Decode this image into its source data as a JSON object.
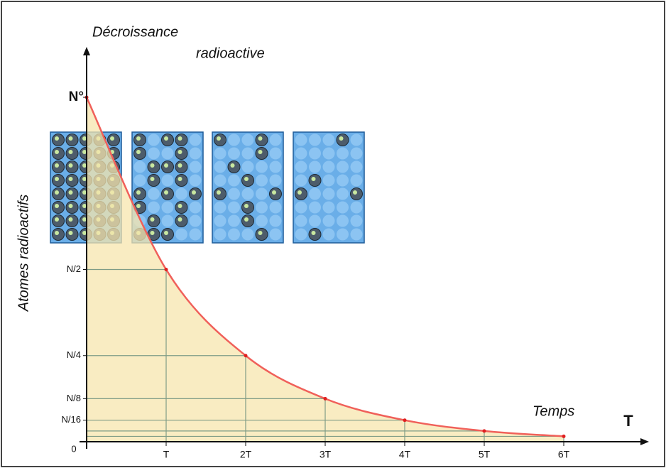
{
  "chart_data": {
    "type": "line",
    "title": [
      "Décroissance",
      "radioactive"
    ],
    "ylabel": "Atomes radioactifs",
    "xlabel": "Temps",
    "xunit": "T",
    "x": [
      0,
      1,
      2,
      3,
      4,
      5,
      6
    ],
    "series": [
      {
        "color": "#f0605a",
        "values": [
          1,
          0.5,
          0.25,
          0.125,
          0.0625,
          0.03125,
          0.015625
        ]
      }
    ],
    "area_color": "#f7e6ad",
    "guide_color": "#7f9c86",
    "xlim": [
      0,
      7
    ],
    "xticks": [
      {
        "value": 1,
        "label": "T"
      },
      {
        "value": 2,
        "label": "2T"
      },
      {
        "value": 3,
        "label": "3T"
      },
      {
        "value": 4,
        "label": "4T"
      },
      {
        "value": 5,
        "label": "5T"
      },
      {
        "value": 6,
        "label": "6T"
      }
    ],
    "ylim": [
      0,
      1
    ],
    "yticks": [
      0,
      {
        "value": 0.0625,
        "label": "N/16"
      },
      {
        "value": 0.125,
        "label": "N/8"
      },
      {
        "value": 0.25,
        "label": "N/4"
      },
      {
        "value": 0.5,
        "label": "N/2"
      },
      {
        "value": 1,
        "label": "N°"
      }
    ]
  }
}
